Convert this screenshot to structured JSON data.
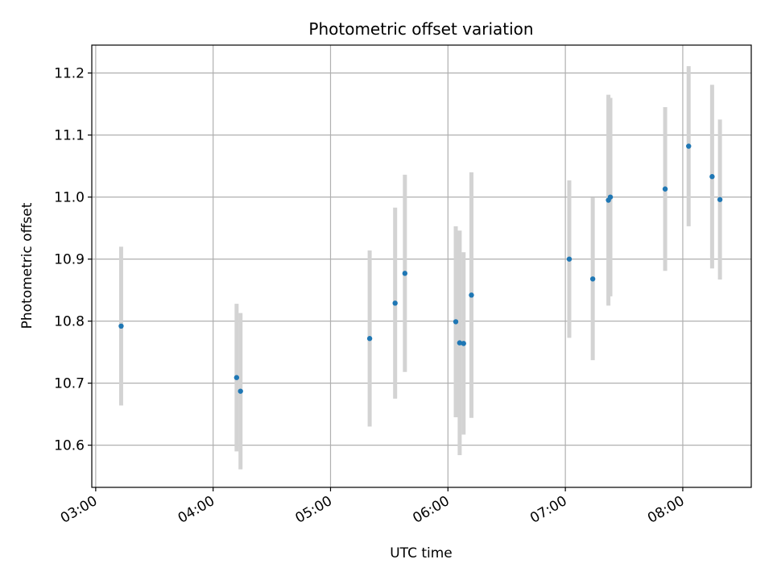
{
  "chart_data": {
    "type": "scatter",
    "title": "Photometric offset variation",
    "xlabel": "UTC time",
    "ylabel": "Photometric offset",
    "x_tick_labels": [
      "03:00",
      "04:00",
      "05:00",
      "06:00",
      "07:00",
      "08:00"
    ],
    "x_tick_values": [
      "03:00",
      "04:00",
      "05:00",
      "06:00",
      "07:00",
      "08:00"
    ],
    "y_ticks": [
      10.6,
      10.7,
      10.8,
      10.9,
      11.0,
      11.1,
      11.2
    ],
    "y_tick_labels": [
      "10.6",
      "10.7",
      "10.8",
      "10.9",
      "11.0",
      "11.1",
      "11.2"
    ],
    "xlim": [
      "02:58",
      "08:35"
    ],
    "ylim": [
      10.532,
      11.245
    ],
    "grid": true,
    "marker_color": "#1f77b4",
    "errorbar_color": "#d3d3d3",
    "series": [
      {
        "points": [
          {
            "time": "03:13",
            "y": 10.792,
            "err": 0.128
          },
          {
            "time": "04:12",
            "y": 10.709,
            "err": 0.119
          },
          {
            "time": "04:14",
            "y": 10.687,
            "err": 0.126
          },
          {
            "time": "05:20",
            "y": 10.772,
            "err": 0.142
          },
          {
            "time": "05:33",
            "y": 10.829,
            "err": 0.154
          },
          {
            "time": "05:38",
            "y": 10.877,
            "err": 0.159
          },
          {
            "time": "06:04",
            "y": 10.799,
            "err": 0.154
          },
          {
            "time": "06:06",
            "y": 10.765,
            "err": 0.181
          },
          {
            "time": "06:08",
            "y": 10.764,
            "err": 0.147
          },
          {
            "time": "06:12",
            "y": 10.842,
            "err": 0.198
          },
          {
            "time": "07:02",
            "y": 10.9,
            "err": 0.127
          },
          {
            "time": "07:14",
            "y": 10.868,
            "err": 0.131
          },
          {
            "time": "07:22",
            "y": 10.995,
            "err": 0.17
          },
          {
            "time": "07:23",
            "y": 11.0,
            "err": 0.16
          },
          {
            "time": "07:51",
            "y": 11.013,
            "err": 0.132
          },
          {
            "time": "08:03",
            "y": 11.082,
            "err": 0.129
          },
          {
            "time": "08:15",
            "y": 11.033,
            "err": 0.148
          },
          {
            "time": "08:19",
            "y": 10.996,
            "err": 0.129
          }
        ]
      }
    ]
  }
}
